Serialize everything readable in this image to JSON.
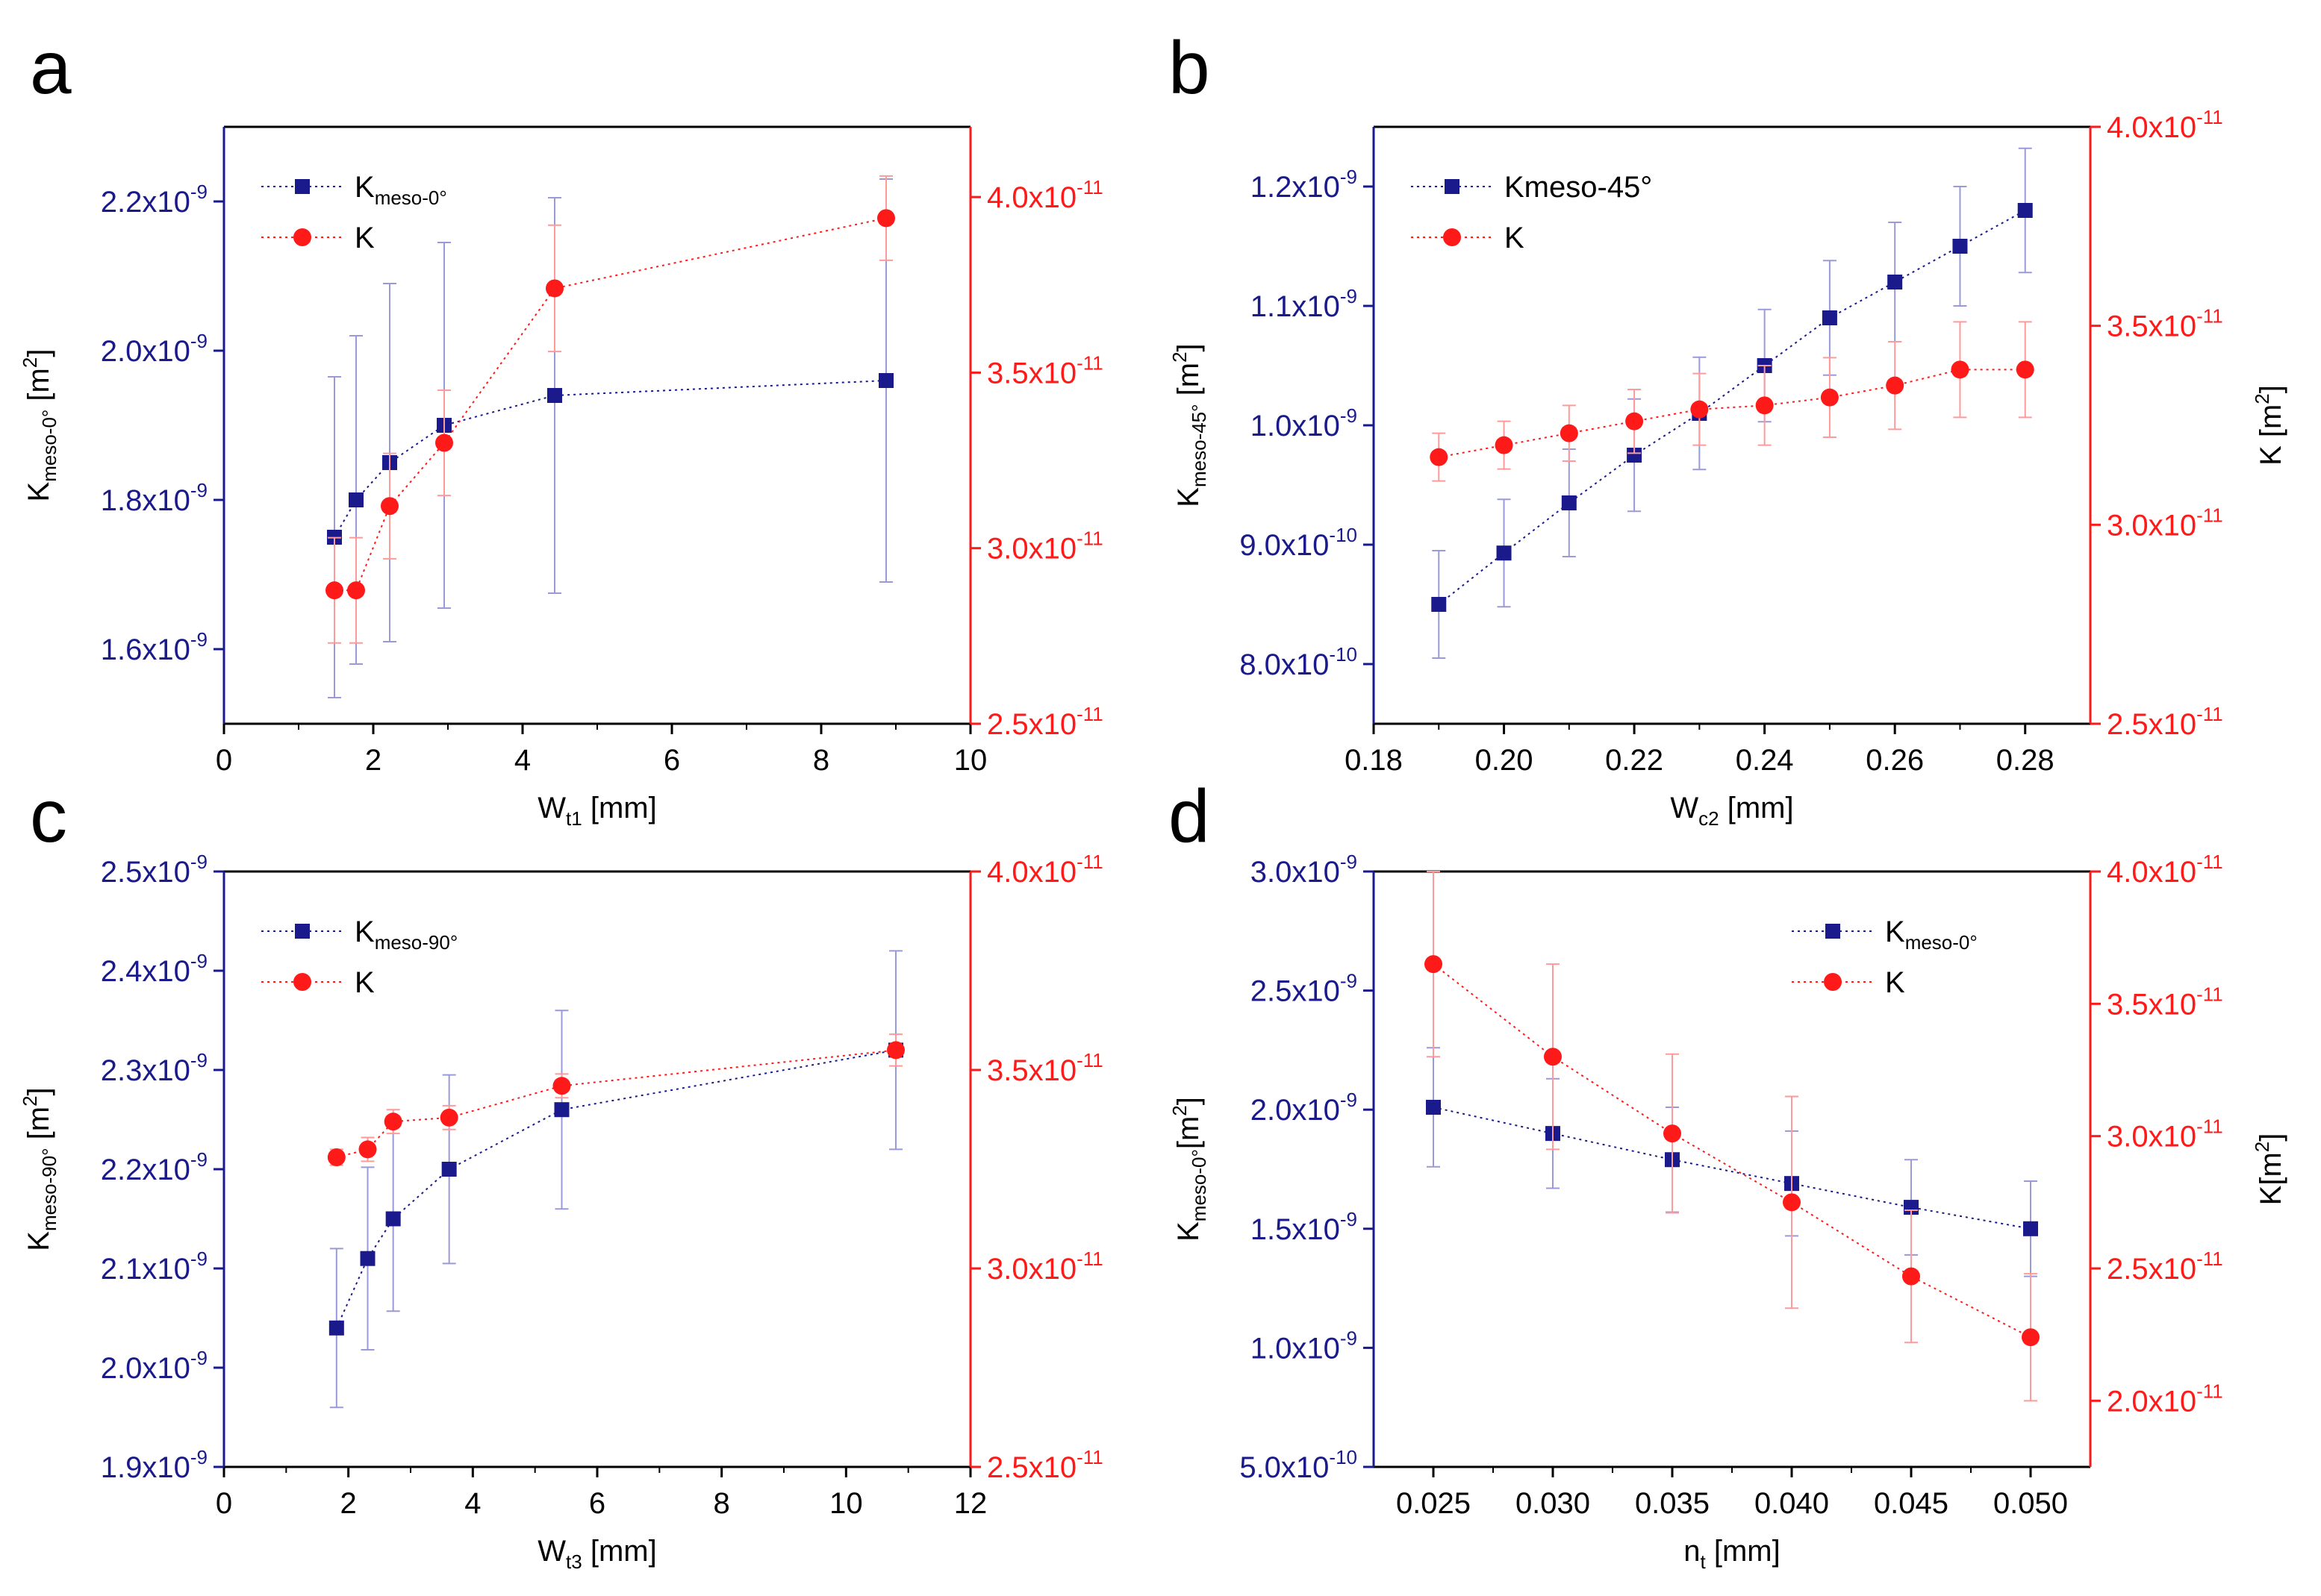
{
  "colors": {
    "blue": "#1a1a8c",
    "red": "#ff1a1a",
    "blue_error": "#9a9ad8",
    "red_error": "#ff9a9a",
    "axis": "#000000"
  },
  "chart_data": [
    {
      "panel_label": "a",
      "type": "scatter",
      "xlabel": {
        "main": "W",
        "sub": "t1",
        "tail": " [mm]"
      },
      "ylabel_left": {
        "main": "K",
        "sub": "meso-0°",
        "tail": " [m",
        "sup": "2",
        "end": "]"
      },
      "ylabel_right": null,
      "xlim": [
        0,
        10
      ],
      "xticks": [
        "0",
        "2",
        "4",
        "6",
        "8",
        "10"
      ],
      "xtick_values": [
        0,
        2,
        4,
        6,
        8,
        10
      ],
      "y_left_lim": [
        1.5e-09,
        2.3e-09
      ],
      "y_left_ticks": [
        {
          "value": 1.6e-09,
          "mantissa": "1.6",
          "exp": "-9"
        },
        {
          "value": 1.8e-09,
          "mantissa": "1.8",
          "exp": "-9"
        },
        {
          "value": 2e-09,
          "mantissa": "2.0",
          "exp": "-9"
        },
        {
          "value": 2.2e-09,
          "mantissa": "2.2",
          "exp": "-9"
        }
      ],
      "y_right_lim": [
        2.5e-11,
        4.2e-11
      ],
      "y_right_ticks": [
        {
          "value": 2.5e-11,
          "mantissa": "2.5",
          "exp": "-11"
        },
        {
          "value": 3e-11,
          "mantissa": "3.0",
          "exp": "-11"
        },
        {
          "value": 3.5e-11,
          "mantissa": "3.5",
          "exp": "-11"
        },
        {
          "value": 4e-11,
          "mantissa": "4.0",
          "exp": "-11"
        }
      ],
      "legend_position": "top-left",
      "series": [
        {
          "name": {
            "main": "K",
            "sub": "meso-0°"
          },
          "axis": "left",
          "marker": "square",
          "color": "blue",
          "x": [
            1.48,
            1.77,
            2.22,
            2.95,
            4.43,
            8.87
          ],
          "y": [
            1.75e-09,
            1.8e-09,
            1.85e-09,
            1.9e-09,
            1.94e-09,
            1.96e-09
          ],
          "err": [
            2.15e-10,
            2.2e-10,
            2.4e-10,
            2.45e-10,
            2.65e-10,
            2.7e-10
          ]
        },
        {
          "name": {
            "main": "K",
            "sub": ""
          },
          "axis": "right",
          "marker": "circle",
          "color": "red",
          "x": [
            1.48,
            1.77,
            2.22,
            2.95,
            4.43,
            8.87
          ],
          "y": [
            2.88e-11,
            2.88e-11,
            3.12e-11,
            3.3e-11,
            3.74e-11,
            3.94e-11
          ],
          "err": [
            1.5e-12,
            1.5e-12,
            1.5e-12,
            1.5e-12,
            1.8e-12,
            1.2e-12
          ]
        }
      ]
    },
    {
      "panel_label": "b",
      "type": "scatter",
      "xlabel": {
        "main": "W",
        "sub": "c2",
        "tail": " [mm]"
      },
      "ylabel_left": {
        "main": "K",
        "sub": "meso-45°",
        "tail": " [m",
        "sup": "2",
        "end": "]"
      },
      "ylabel_right": {
        "main": "K",
        "sub": "",
        "tail": " [m",
        "sup": "2",
        "end": "]"
      },
      "xlim": [
        0.18,
        0.29
      ],
      "xticks": [
        "0.18",
        "0.20",
        "0.22",
        "0.24",
        "0.26",
        "0.28"
      ],
      "xtick_values": [
        0.18,
        0.2,
        0.22,
        0.24,
        0.26,
        0.28
      ],
      "y_left_lim": [
        7.5e-10,
        1.25e-09
      ],
      "y_left_ticks": [
        {
          "value": 8e-10,
          "mantissa": "8.0",
          "exp": "-10"
        },
        {
          "value": 9e-10,
          "mantissa": "9.0",
          "exp": "-10"
        },
        {
          "value": 1e-09,
          "mantissa": "1.0",
          "exp": "-9"
        },
        {
          "value": 1.1e-09,
          "mantissa": "1.1",
          "exp": "-9"
        },
        {
          "value": 1.2e-09,
          "mantissa": "1.2",
          "exp": "-9"
        }
      ],
      "y_right_lim": [
        2.5e-11,
        4e-11
      ],
      "y_right_ticks": [
        {
          "value": 2.5e-11,
          "mantissa": "2.5",
          "exp": "-11"
        },
        {
          "value": 3e-11,
          "mantissa": "3.0",
          "exp": "-11"
        },
        {
          "value": 3.5e-11,
          "mantissa": "3.5",
          "exp": "-11"
        },
        {
          "value": 4e-11,
          "mantissa": "4.0",
          "exp": "-11"
        }
      ],
      "legend_position": "top-left",
      "series": [
        {
          "name": {
            "main": "Kmeso-45°",
            "sub": ""
          },
          "axis": "left",
          "marker": "square",
          "color": "blue",
          "x": [
            0.19,
            0.2,
            0.21,
            0.22,
            0.23,
            0.24,
            0.25,
            0.26,
            0.27,
            0.28
          ],
          "y": [
            8.5e-10,
            8.93e-10,
            9.35e-10,
            9.75e-10,
            1.01e-09,
            1.05e-09,
            1.09e-09,
            1.12e-09,
            1.15e-09,
            1.18e-09
          ],
          "err": [
            4.5e-11,
            4.5e-11,
            4.5e-11,
            4.7e-11,
            4.7e-11,
            4.7e-11,
            4.8e-11,
            5e-11,
            5e-11,
            5.2e-11
          ]
        },
        {
          "name": {
            "main": "K",
            "sub": ""
          },
          "axis": "right",
          "marker": "circle",
          "color": "red",
          "x": [
            0.19,
            0.2,
            0.21,
            0.22,
            0.23,
            0.24,
            0.25,
            0.26,
            0.27,
            0.28
          ],
          "y": [
            3.17e-11,
            3.2e-11,
            3.23e-11,
            3.26e-11,
            3.29e-11,
            3.3e-11,
            3.32e-11,
            3.35e-11,
            3.39e-11,
            3.39e-11
          ],
          "err": [
            6e-13,
            6e-13,
            7e-13,
            8e-13,
            9e-13,
            1e-12,
            1e-12,
            1.1e-12,
            1.2e-12,
            1.2e-12
          ]
        }
      ]
    },
    {
      "panel_label": "c",
      "type": "scatter",
      "xlabel": {
        "main": "W",
        "sub": "t3",
        "tail": " [mm]"
      },
      "ylabel_left": {
        "main": "K",
        "sub": "meso-90°",
        "tail": " [m",
        "sup": "2",
        "end": "]"
      },
      "ylabel_right": null,
      "xlim": [
        0,
        12
      ],
      "xticks": [
        "0",
        "2",
        "4",
        "6",
        "8",
        "10",
        "12"
      ],
      "xtick_values": [
        0,
        2,
        4,
        6,
        8,
        10,
        12
      ],
      "y_left_lim": [
        1.9e-09,
        2.5e-09
      ],
      "y_left_ticks": [
        {
          "value": 1.9e-09,
          "mantissa": "1.9",
          "exp": "-9"
        },
        {
          "value": 2e-09,
          "mantissa": "2.0",
          "exp": "-9"
        },
        {
          "value": 2.1e-09,
          "mantissa": "2.1",
          "exp": "-9"
        },
        {
          "value": 2.2e-09,
          "mantissa": "2.2",
          "exp": "-9"
        },
        {
          "value": 2.3e-09,
          "mantissa": "2.3",
          "exp": "-9"
        },
        {
          "value": 2.4e-09,
          "mantissa": "2.4",
          "exp": "-9"
        },
        {
          "value": 2.5e-09,
          "mantissa": "2.5",
          "exp": "-9"
        }
      ],
      "y_right_lim": [
        2.5e-11,
        4e-11
      ],
      "y_right_ticks": [
        {
          "value": 2.5e-11,
          "mantissa": "2.5",
          "exp": "-11"
        },
        {
          "value": 3e-11,
          "mantissa": "3.0",
          "exp": "-11"
        },
        {
          "value": 3.5e-11,
          "mantissa": "3.5",
          "exp": "-11"
        },
        {
          "value": 4e-11,
          "mantissa": "4.0",
          "exp": "-11"
        }
      ],
      "legend_position": "top-left",
      "series": [
        {
          "name": {
            "main": "K",
            "sub": "meso-90°"
          },
          "axis": "left",
          "marker": "square",
          "color": "blue",
          "x": [
            1.81,
            2.31,
            2.72,
            3.62,
            5.43,
            10.8
          ],
          "y": [
            2.04e-09,
            2.11e-09,
            2.15e-09,
            2.2e-09,
            2.26e-09,
            2.32e-09
          ],
          "err": [
            8e-11,
            9.2e-11,
            9.3e-11,
            9.5e-11,
            1e-10,
            1e-10
          ]
        },
        {
          "name": {
            "main": "K",
            "sub": ""
          },
          "axis": "right",
          "marker": "circle",
          "color": "red",
          "x": [
            1.81,
            2.31,
            2.72,
            3.62,
            5.43,
            10.8
          ],
          "y": [
            3.28e-11,
            3.3e-11,
            3.37e-11,
            3.38e-11,
            3.46e-11,
            3.55e-11
          ],
          "err": [
            2e-13,
            3e-13,
            3e-13,
            3e-13,
            3e-13,
            4e-13
          ]
        }
      ]
    },
    {
      "panel_label": "d",
      "type": "scatter",
      "xlabel": {
        "main": "n",
        "sub": "t",
        "tail": " [mm]"
      },
      "ylabel_left": {
        "main": "K",
        "sub": "meso-0°",
        "tail": "[m",
        "sup": "2",
        "end": "]"
      },
      "ylabel_right": {
        "main": "K",
        "sub": "",
        "tail": "[m",
        "sup": "2",
        "end": "]"
      },
      "xlim": [
        0.0225,
        0.0525
      ],
      "xticks": [
        "0.025",
        "0.030",
        "0.035",
        "0.040",
        "0.045",
        "0.050"
      ],
      "xtick_values": [
        0.025,
        0.03,
        0.035,
        0.04,
        0.045,
        0.05
      ],
      "y_left_lim": [
        5e-10,
        3e-09
      ],
      "y_left_ticks": [
        {
          "value": 5e-10,
          "mantissa": "5.0",
          "exp": "-10"
        },
        {
          "value": 1e-09,
          "mantissa": "1.0",
          "exp": "-9"
        },
        {
          "value": 1.5e-09,
          "mantissa": "1.5",
          "exp": "-9"
        },
        {
          "value": 2e-09,
          "mantissa": "2.0",
          "exp": "-9"
        },
        {
          "value": 2.5e-09,
          "mantissa": "2.5",
          "exp": "-9"
        },
        {
          "value": 3e-09,
          "mantissa": "3.0",
          "exp": "-9"
        }
      ],
      "y_right_lim": [
        1.75e-11,
        4e-11
      ],
      "y_right_ticks": [
        {
          "value": 2e-11,
          "mantissa": "2.0",
          "exp": "-11"
        },
        {
          "value": 2.5e-11,
          "mantissa": "2.5",
          "exp": "-11"
        },
        {
          "value": 3e-11,
          "mantissa": "3.0",
          "exp": "-11"
        },
        {
          "value": 3.5e-11,
          "mantissa": "3.5",
          "exp": "-11"
        },
        {
          "value": 4e-11,
          "mantissa": "4.0",
          "exp": "-11"
        }
      ],
      "legend_position": "top-right",
      "series": [
        {
          "name": {
            "main": "K",
            "sub": "meso-0°"
          },
          "axis": "left",
          "marker": "square",
          "color": "blue",
          "x": [
            0.025,
            0.03,
            0.035,
            0.04,
            0.045,
            0.05
          ],
          "y": [
            2.01e-09,
            1.9e-09,
            1.79e-09,
            1.69e-09,
            1.59e-09,
            1.5e-09
          ],
          "err": [
            2.5e-10,
            2.3e-10,
            2.2e-10,
            2.2e-10,
            2e-10,
            2e-10
          ]
        },
        {
          "name": {
            "main": "K",
            "sub": ""
          },
          "axis": "right",
          "marker": "circle",
          "color": "red",
          "x": [
            0.025,
            0.03,
            0.035,
            0.04,
            0.045,
            0.05
          ],
          "y": [
            3.65e-11,
            3.3e-11,
            3.01e-11,
            2.75e-11,
            2.47e-11,
            2.24e-11
          ],
          "err": [
            3.5e-12,
            3.5e-12,
            3e-12,
            4e-12,
            2.5e-12,
            2.4e-12
          ]
        }
      ]
    }
  ]
}
